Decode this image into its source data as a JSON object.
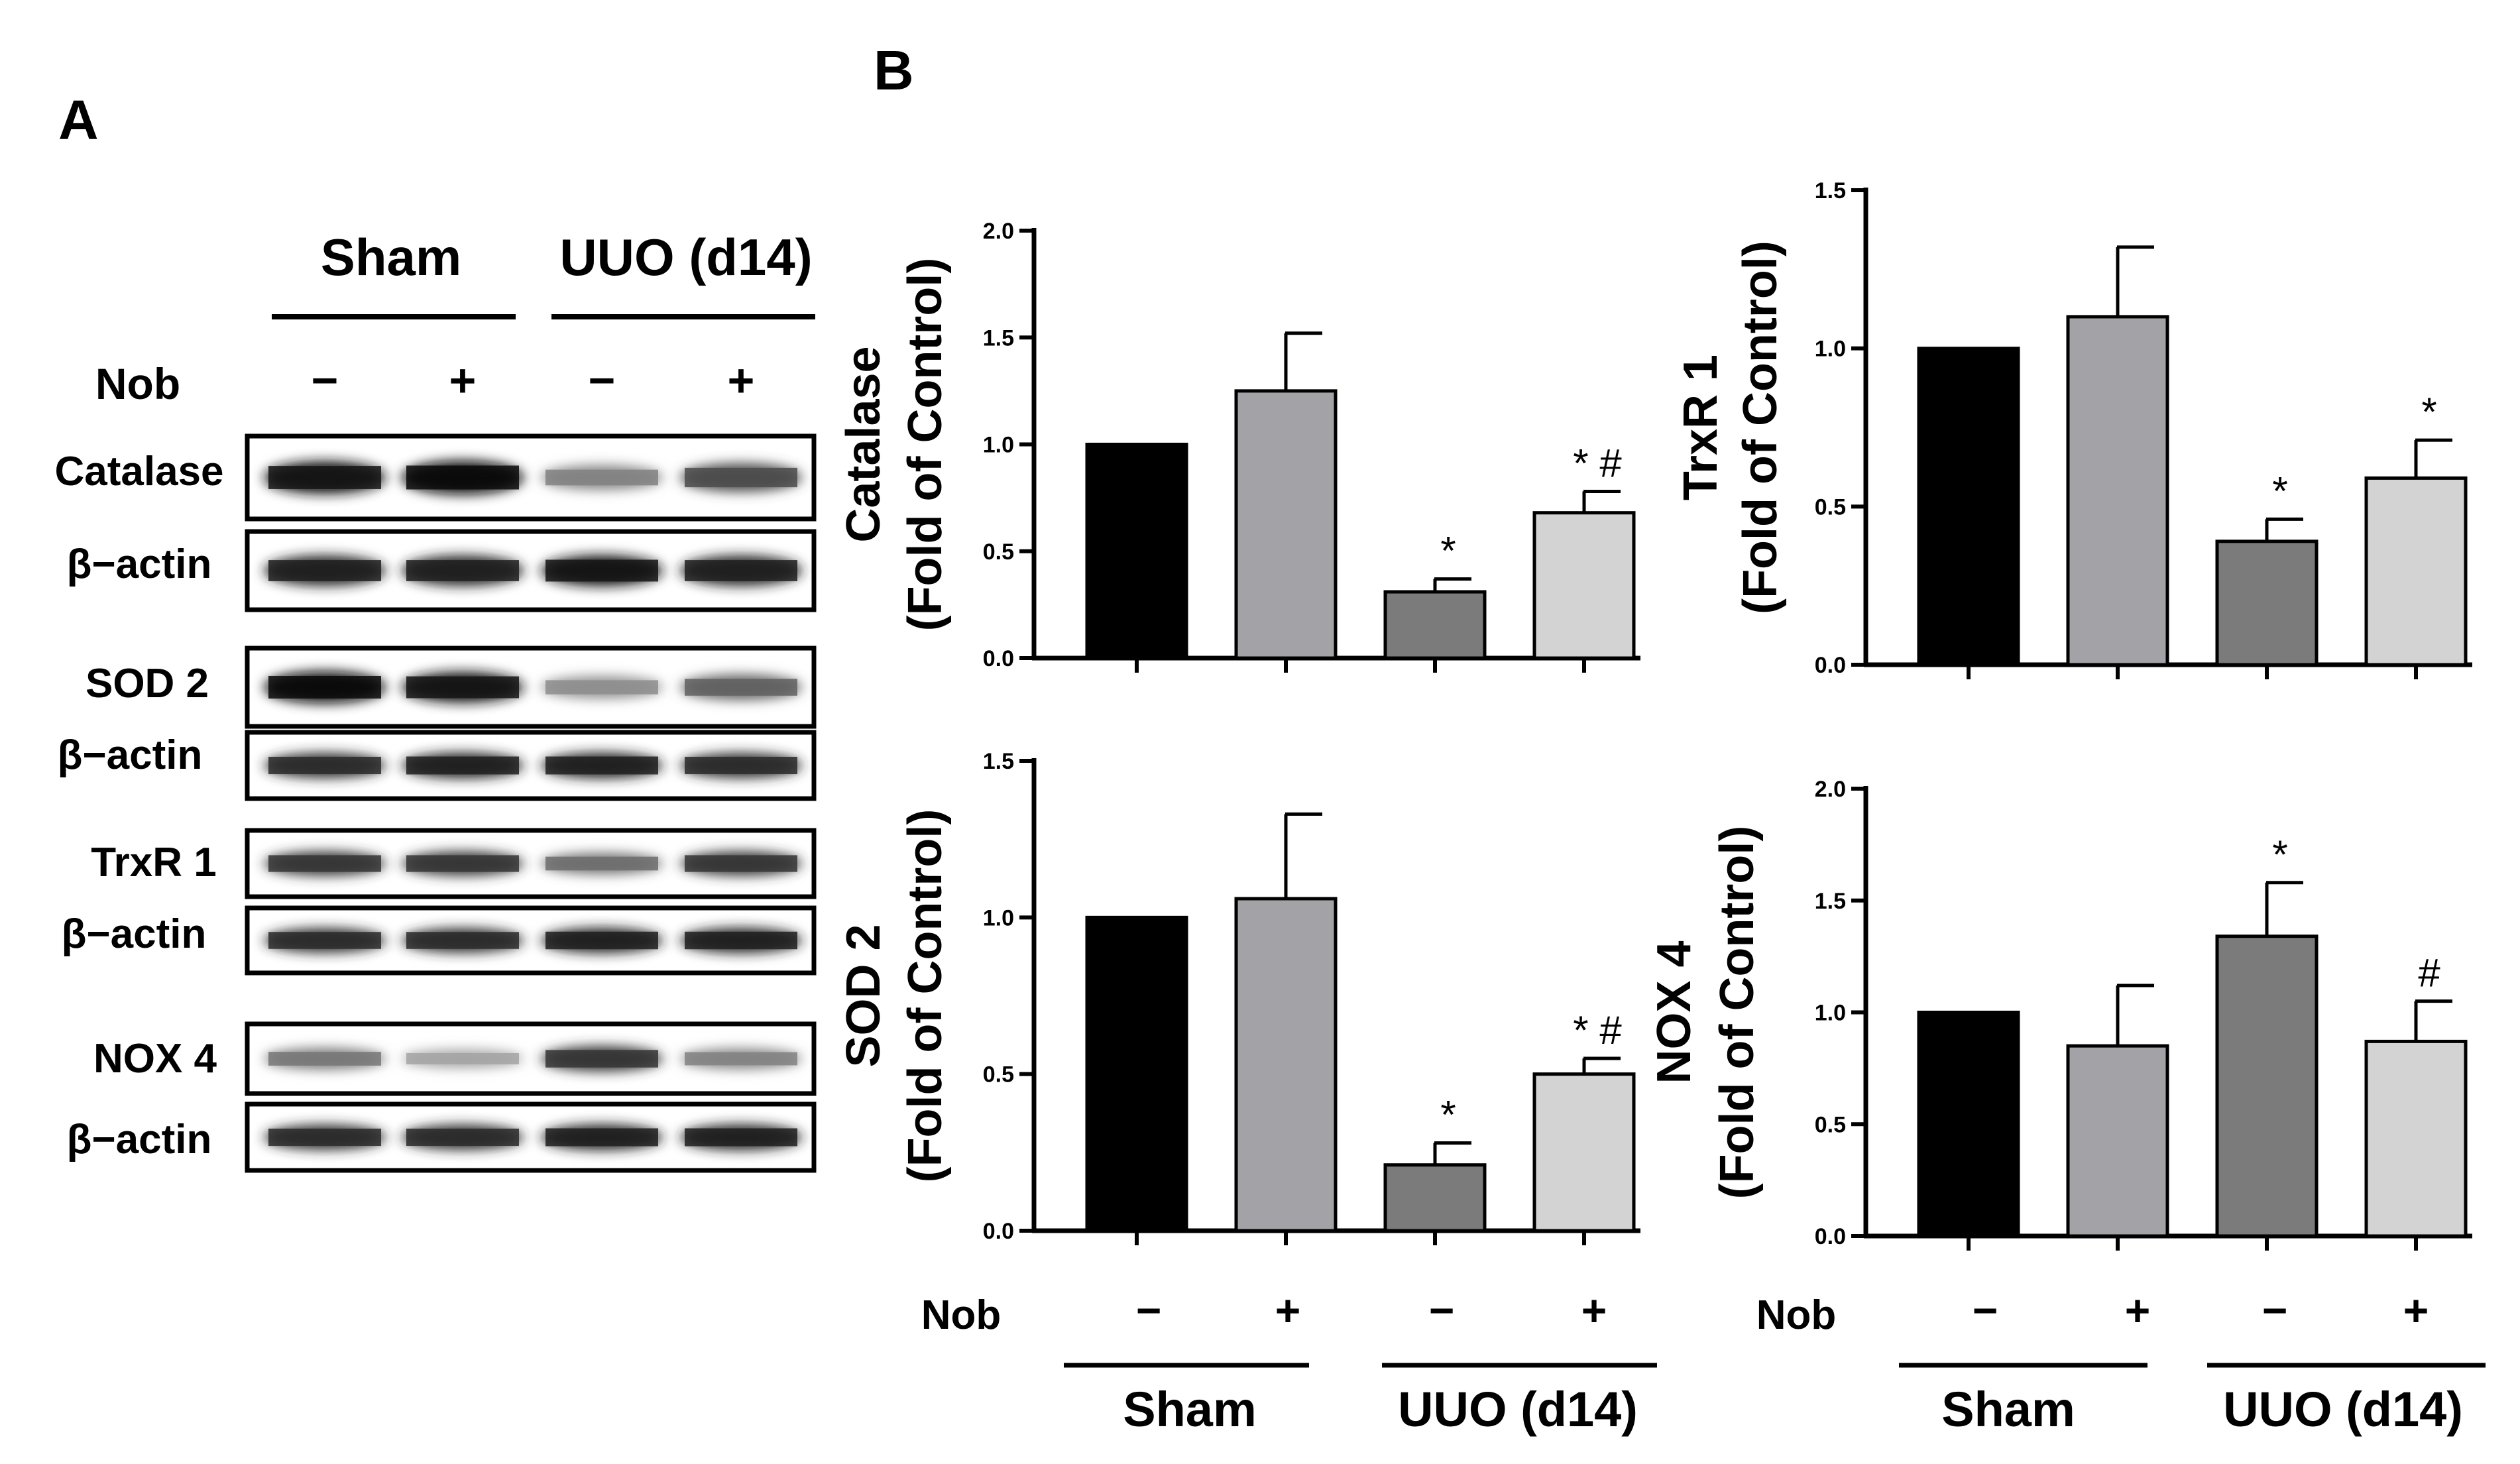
{
  "panel_a": {
    "letter": "A",
    "groups": [
      "Sham",
      "UUO (d14)"
    ],
    "nob_label": "Nob",
    "nob_signs": [
      "−",
      "+",
      "−",
      "+"
    ],
    "beta_label": "β−actin",
    "blots": [
      {
        "label": "Catalase",
        "intensity": [
          0.95,
          1.0,
          0.45,
          0.7
        ],
        "actin": [
          0.9,
          0.9,
          0.95,
          0.9
        ]
      },
      {
        "label": "SOD 2",
        "intensity": [
          1.0,
          0.95,
          0.4,
          0.6
        ],
        "actin": [
          0.85,
          0.9,
          0.9,
          0.85
        ]
      },
      {
        "label": "TrxR 1",
        "intensity": [
          0.8,
          0.8,
          0.55,
          0.8
        ],
        "actin": [
          0.85,
          0.85,
          0.9,
          0.9
        ]
      },
      {
        "label": "NOX 4",
        "intensity": [
          0.5,
          0.3,
          0.8,
          0.45
        ],
        "actin": [
          0.85,
          0.85,
          0.9,
          0.9
        ]
      }
    ]
  },
  "panel_b": {
    "letter": "B",
    "nob_label": "Nob",
    "nob_signs": [
      "−",
      "+",
      "−",
      "+"
    ],
    "groups": [
      "Sham",
      "UUO (d14)"
    ]
  },
  "chart_data": [
    {
      "type": "bar",
      "id": "catalase",
      "ylabel": "Catalase",
      "ylabel2": "(Fold of Control)",
      "categories": [
        "Sham −",
        "Sham +",
        "UUO (d14) −",
        "UUO (d14) +"
      ],
      "values": [
        1.0,
        1.25,
        0.31,
        0.68
      ],
      "errors": [
        0.0,
        0.27,
        0.06,
        0.1
      ],
      "annotations": [
        "",
        "",
        "*",
        "* #"
      ],
      "colors": [
        "#000000",
        "#a3a3a7",
        "#7b7b7b",
        "#d3d3d3"
      ],
      "ylim": [
        0,
        2.0
      ],
      "yticks": [
        0.0,
        0.5,
        1.0,
        1.5,
        2.0
      ],
      "yticklabels": [
        "0.0",
        "0.5",
        "1.0",
        "1.5",
        "2.0"
      ]
    },
    {
      "type": "bar",
      "id": "trxr1",
      "ylabel": "TrxR 1",
      "ylabel2": "(Fold of Control)",
      "categories": [
        "Sham −",
        "Sham +",
        "UUO (d14) −",
        "UUO (d14) +"
      ],
      "values": [
        1.0,
        1.1,
        0.39,
        0.59
      ],
      "errors": [
        0.0,
        0.22,
        0.07,
        0.12
      ],
      "annotations": [
        "",
        "",
        "*",
        "*"
      ],
      "colors": [
        "#000000",
        "#a3a3a7",
        "#7b7b7b",
        "#d3d3d3"
      ],
      "ylim": [
        0,
        1.5
      ],
      "yticks": [
        0.0,
        0.5,
        1.0,
        1.5
      ],
      "yticklabels": [
        "0.0",
        "0.5",
        "1.0",
        "1.5"
      ]
    },
    {
      "type": "bar",
      "id": "sod2",
      "ylabel": "SOD 2",
      "ylabel2": "(Fold of Control)",
      "categories": [
        "Sham −",
        "Sham +",
        "UUO (d14) −",
        "UUO (d14) +"
      ],
      "values": [
        1.0,
        1.06,
        0.21,
        0.5
      ],
      "errors": [
        0.0,
        0.27,
        0.07,
        0.05
      ],
      "annotations": [
        "",
        "",
        "*",
        "* #"
      ],
      "colors": [
        "#000000",
        "#a3a3a7",
        "#7b7b7b",
        "#d3d3d3"
      ],
      "ylim": [
        0,
        1.5
      ],
      "yticks": [
        0.0,
        0.5,
        1.0,
        1.5
      ],
      "yticklabels": [
        "0.0",
        "0.5",
        "1.0",
        "1.5"
      ]
    },
    {
      "type": "bar",
      "id": "nox4",
      "ylabel": "NOX 4",
      "ylabel2": "(Fold of Control)",
      "categories": [
        "Sham −",
        "Sham +",
        "UUO (d14) −",
        "UUO (d14) +"
      ],
      "values": [
        1.0,
        0.85,
        1.34,
        0.87
      ],
      "errors": [
        0.0,
        0.27,
        0.24,
        0.18
      ],
      "annotations": [
        "",
        "",
        "*",
        "#"
      ],
      "colors": [
        "#000000",
        "#a3a3a7",
        "#7b7b7b",
        "#d3d3d3"
      ],
      "ylim": [
        0,
        2.0
      ],
      "yticks": [
        0.0,
        0.5,
        1.0,
        1.5,
        2.0
      ],
      "yticklabels": [
        "0.0",
        "0.5",
        "1.0",
        "1.5",
        "2.0"
      ]
    }
  ]
}
